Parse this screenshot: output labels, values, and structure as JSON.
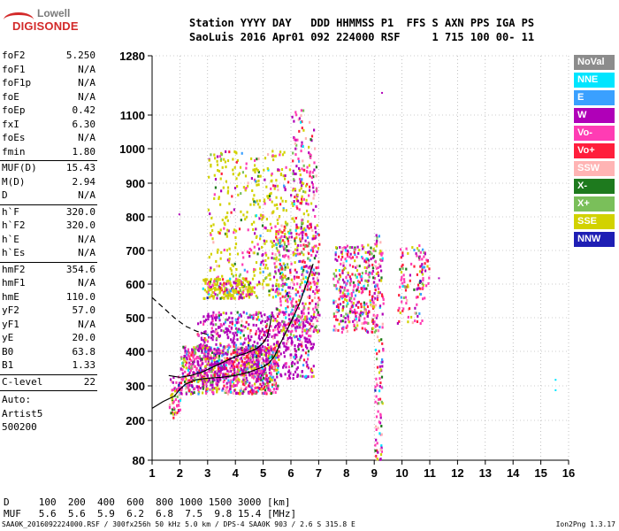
{
  "logo": {
    "line1": "Lowell",
    "line2": "DIGISONDE"
  },
  "header": {
    "line1": "Station YYYY DAY   DDD HHMMSS P1  FFS S AXN PPS IGA PS",
    "line2": "SaoLuis 2016 Apr01 092 224000 RSF     1 715 100 00- 11"
  },
  "params_group1": [
    {
      "name": "foF2",
      "value": "5.250"
    },
    {
      "name": "foF1",
      "value": "N/A"
    },
    {
      "name": "foF1p",
      "value": "N/A"
    },
    {
      "name": "foE",
      "value": "N/A"
    },
    {
      "name": "foEp",
      "value": "0.42"
    },
    {
      "name": "fxI",
      "value": "6.30"
    },
    {
      "name": "foEs",
      "value": "N/A"
    },
    {
      "name": "fmin",
      "value": "1.80"
    }
  ],
  "params_group2": [
    {
      "name": "MUF(D)",
      "value": "15.43"
    },
    {
      "name": "M(D)",
      "value": "2.94"
    },
    {
      "name": "D",
      "value": "N/A"
    }
  ],
  "params_group3": [
    {
      "name": "h`F",
      "value": "320.0"
    },
    {
      "name": "h`F2",
      "value": "320.0"
    },
    {
      "name": "h`E",
      "value": "N/A"
    },
    {
      "name": "h`Es",
      "value": "N/A"
    }
  ],
  "params_group4": [
    {
      "name": "hmF2",
      "value": "354.6"
    },
    {
      "name": "hmF1",
      "value": "N/A"
    },
    {
      "name": "hmE",
      "value": "110.0"
    },
    {
      "name": "yF2",
      "value": "57.0"
    },
    {
      "name": "yF1",
      "value": "N/A"
    },
    {
      "name": "yE",
      "value": "20.0"
    },
    {
      "name": "B0",
      "value": "63.8"
    },
    {
      "name": "B1",
      "value": "1.33"
    }
  ],
  "clevel": {
    "name": "C-level",
    "value": "22"
  },
  "auto_text": [
    "Auto:",
    "Artist5",
    "500200"
  ],
  "legend": [
    {
      "label": "NoVal",
      "color": "#8c8c8c"
    },
    {
      "label": "NNE",
      "color": "#00e5ff"
    },
    {
      "label": "E",
      "color": "#3aa0ff"
    },
    {
      "label": "W",
      "color": "#b000b8"
    },
    {
      "label": "Vo-",
      "color": "#ff3cb4"
    },
    {
      "label": "Vo+",
      "color": "#ff1e3c"
    },
    {
      "label": "SSW",
      "color": "#ffb4b4"
    },
    {
      "label": "X-",
      "color": "#1e7a1e"
    },
    {
      "label": "X+",
      "color": "#7abf5a"
    },
    {
      "label": "SSE",
      "color": "#d2d200"
    },
    {
      "label": "NNW",
      "color": "#1e1eb4"
    }
  ],
  "bottom": {
    "line1": "D     100  200  400  600  800 1000 1500 3000 [km]",
    "line2": "MUF   5.6  5.6  5.9  6.2  6.8  7.5  9.8 15.4 [MHz]"
  },
  "footer": {
    "left": "SAA0K_2016092224000.RSF / 300fx256h 50 kHz 5.0 km / DPS-4 SAA0K 903 / 2.6 S 315.8 E",
    "right": "Ion2Png 1.3.17"
  },
  "chart_data": {
    "type": "scatter",
    "x_ticks": [
      1,
      2,
      3,
      4,
      5,
      6,
      7,
      8,
      9,
      10,
      11,
      12,
      13,
      14,
      15,
      16
    ],
    "y_ticks": [
      80,
      200,
      300,
      400,
      500,
      600,
      700,
      800,
      900,
      1000,
      1100,
      1280
    ],
    "xlim": [
      1,
      16
    ],
    "ylim": [
      80,
      1280
    ],
    "grid": "dotted",
    "clusters": [
      {
        "xr": [
          1.6,
          2.0
        ],
        "yr": [
          210,
          330
        ],
        "n": 60
      },
      {
        "xr": [
          2.0,
          5.5
        ],
        "yr": [
          280,
          420
        ],
        "n": 900
      },
      {
        "xr": [
          2.6,
          6.8
        ],
        "yr": [
          320,
          520
        ],
        "n": 700
      },
      {
        "xr": [
          3.0,
          5.8
        ],
        "yr": [
          560,
          1000
        ],
        "n": 320
      },
      {
        "xr": [
          2.8,
          4.6
        ],
        "yr": [
          560,
          620
        ],
        "n": 220
      },
      {
        "xr": [
          4.6,
          6.6
        ],
        "yr": [
          600,
          950
        ],
        "n": 160
      },
      {
        "xr": [
          5.4,
          7.0
        ],
        "yr": [
          460,
          780
        ],
        "n": 420
      },
      {
        "xr": [
          6.0,
          6.9
        ],
        "yr": [
          780,
          1120
        ],
        "n": 120
      },
      {
        "xr": [
          7.5,
          9.0
        ],
        "yr": [
          460,
          720
        ],
        "n": 360
      },
      {
        "xr": [
          9.0,
          9.3
        ],
        "yr": [
          80,
          760
        ],
        "n": 140
      },
      {
        "xr": [
          9.8,
          10.8
        ],
        "yr": [
          480,
          720
        ],
        "n": 90
      },
      {
        "xr": [
          10.6,
          11.0
        ],
        "yr": [
          590,
          700
        ],
        "n": 30
      }
    ],
    "curves": [
      {
        "name": "trace",
        "style": "solid",
        "points": [
          [
            1.0,
            235
          ],
          [
            1.4,
            255
          ],
          [
            1.8,
            270
          ],
          [
            2.0,
            290
          ],
          [
            2.2,
            305
          ],
          [
            2.6,
            318
          ],
          [
            3.0,
            322
          ],
          [
            3.5,
            325
          ],
          [
            4.0,
            330
          ],
          [
            4.5,
            340
          ],
          [
            5.0,
            355
          ],
          [
            5.2,
            365
          ],
          [
            5.4,
            385
          ],
          [
            5.6,
            420
          ],
          [
            5.9,
            470
          ],
          [
            6.3,
            540
          ],
          [
            6.6,
            610
          ],
          [
            6.8,
            660
          ]
        ]
      },
      {
        "name": "profile",
        "style": "solid",
        "points": [
          [
            1.6,
            330
          ],
          [
            2.0,
            325
          ],
          [
            2.4,
            330
          ],
          [
            2.8,
            340
          ],
          [
            3.2,
            355
          ],
          [
            3.6,
            370
          ],
          [
            4.0,
            385
          ],
          [
            4.4,
            395
          ],
          [
            4.8,
            410
          ],
          [
            5.0,
            425
          ],
          [
            5.15,
            445
          ],
          [
            5.25,
            480
          ],
          [
            5.3,
            505
          ]
        ]
      },
      {
        "name": "extrapolation",
        "style": "dashed",
        "points": [
          [
            1.0,
            560
          ],
          [
            1.4,
            530
          ],
          [
            1.8,
            500
          ],
          [
            2.2,
            475
          ],
          [
            2.6,
            460
          ],
          [
            2.9,
            452
          ],
          [
            3.2,
            448
          ]
        ]
      }
    ],
    "outliers": [
      [
        1.95,
        810
      ],
      [
        9.25,
        1170
      ],
      [
        15.5,
        320
      ],
      [
        15.5,
        290
      ],
      [
        10.6,
        685
      ],
      [
        11.3,
        620
      ]
    ]
  }
}
